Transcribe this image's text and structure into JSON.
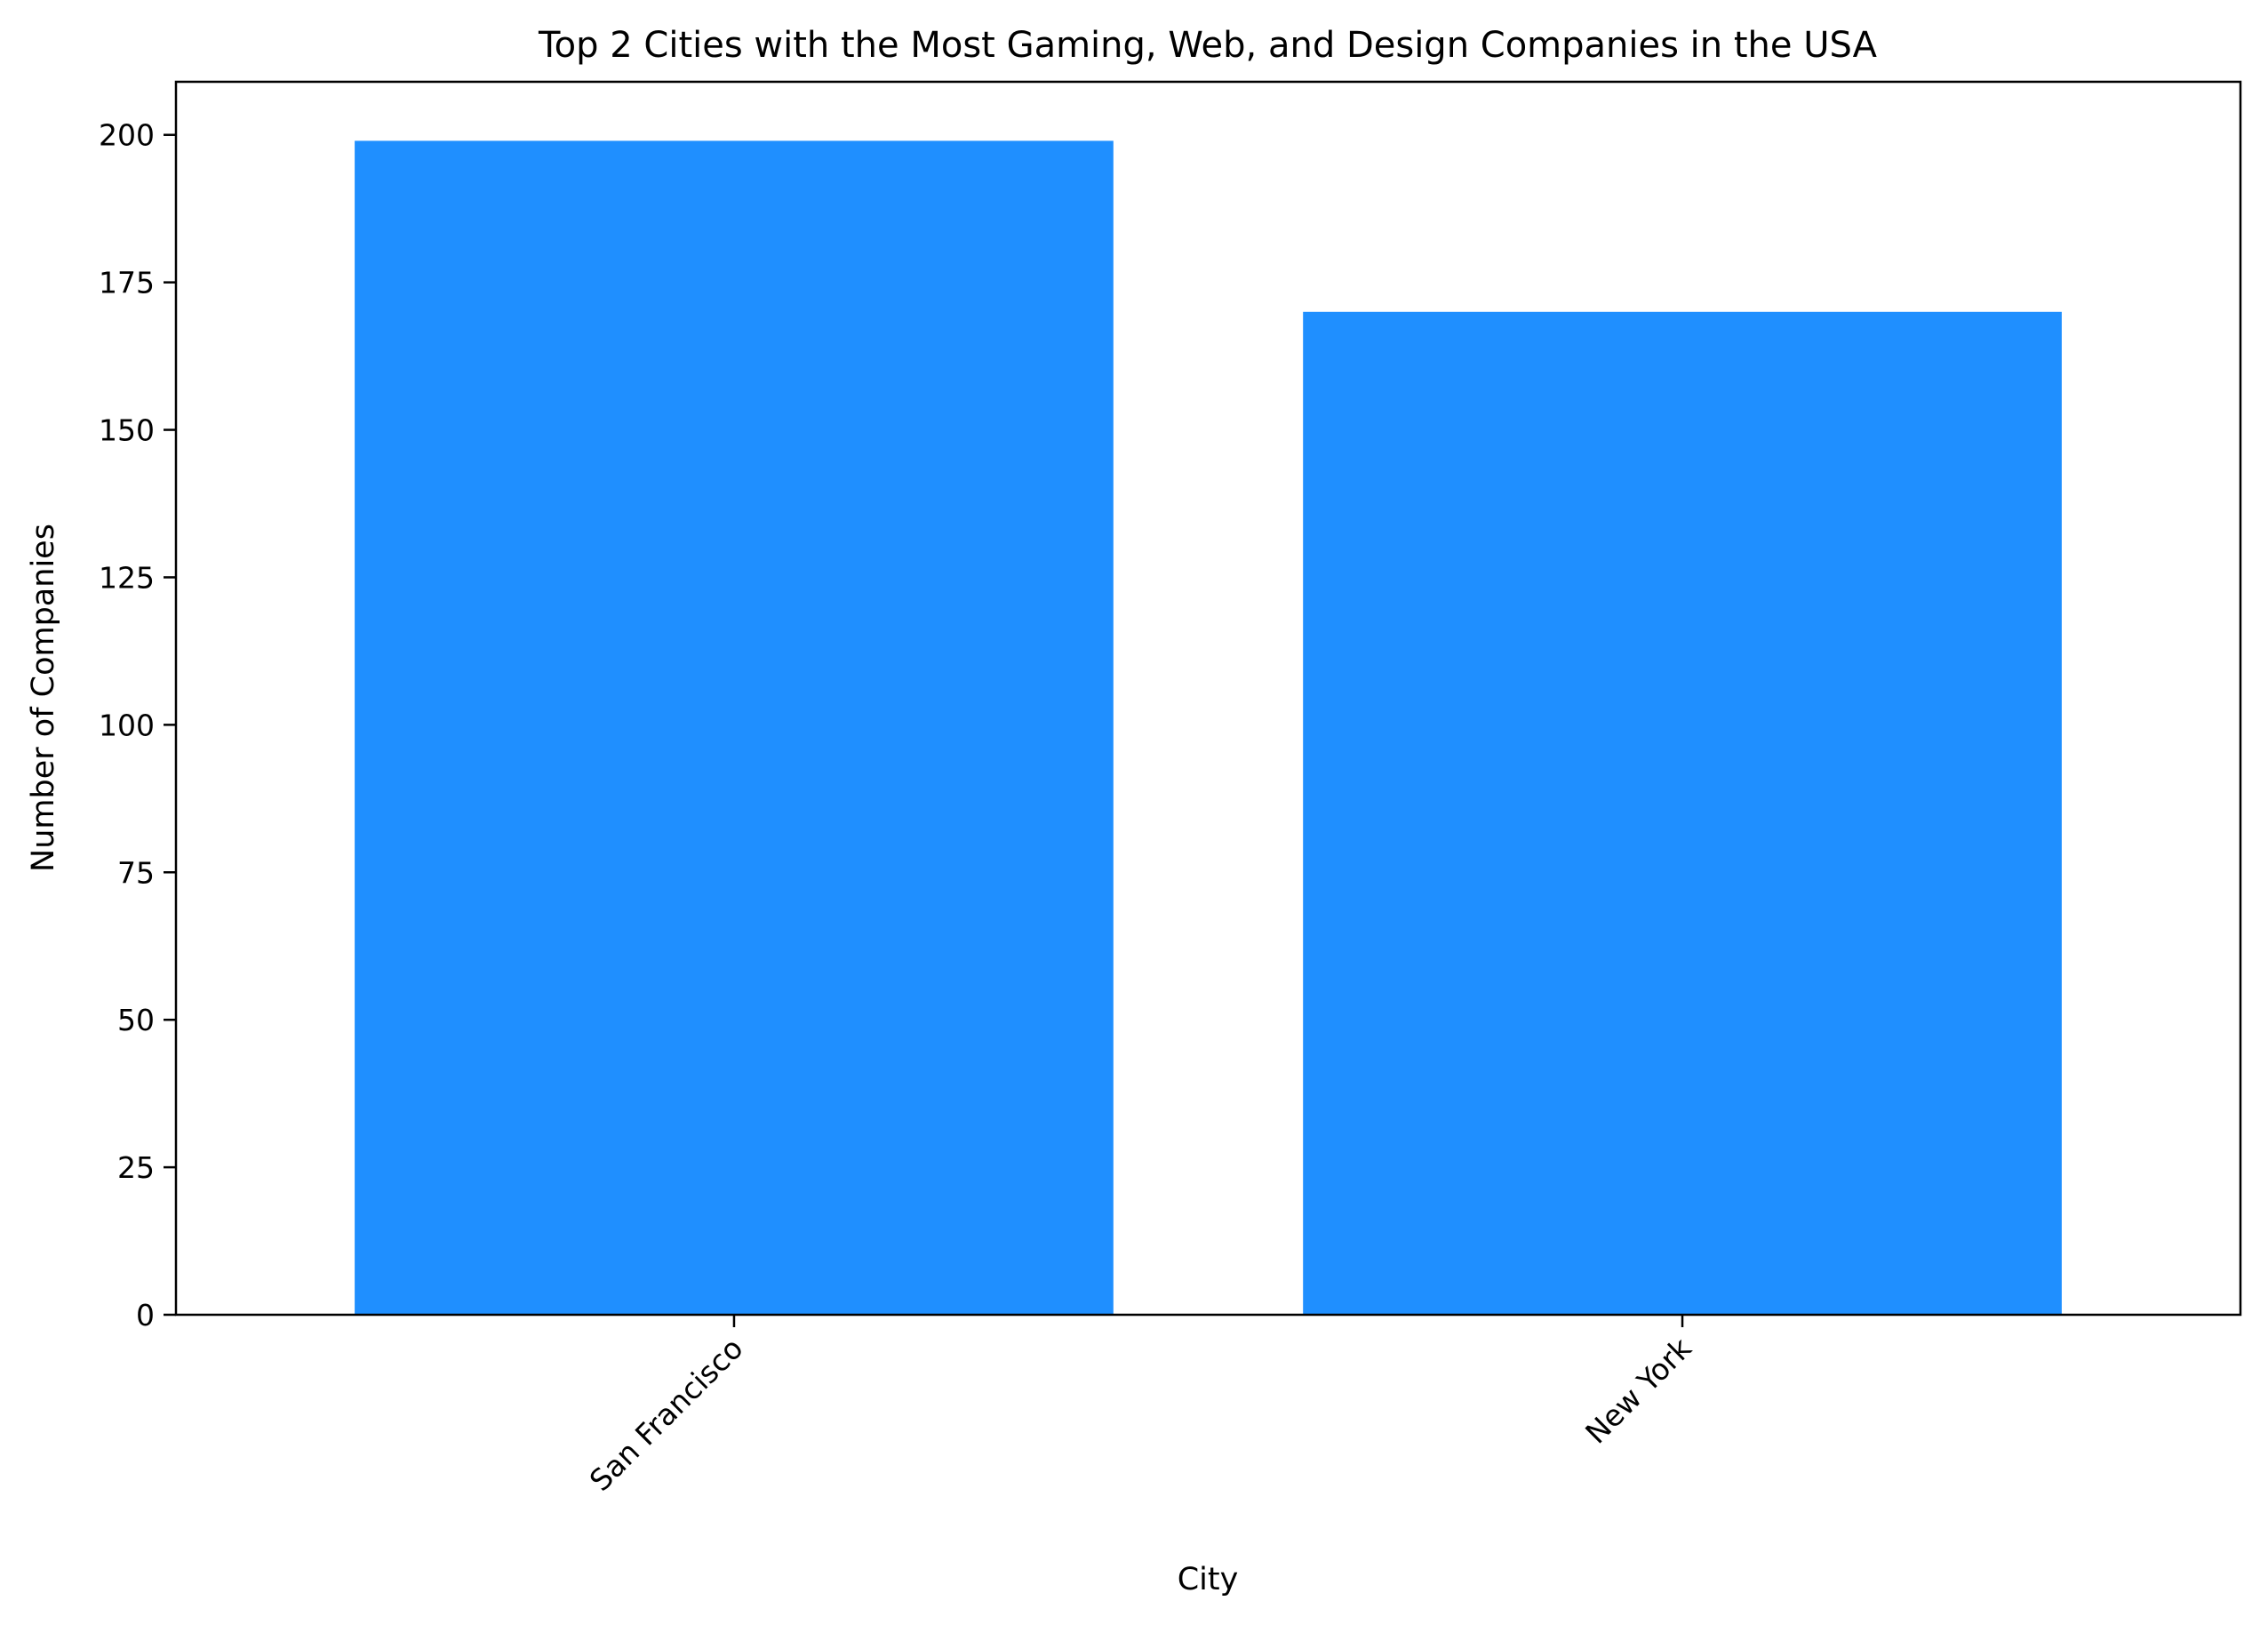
{
  "chart_data": {
    "type": "bar",
    "title": "Top 2 Cities with the Most Gaming, Web, and Design Companies in the USA",
    "xlabel": "City",
    "ylabel": "Number of Companies",
    "categories": [
      "San Francisco",
      "New York"
    ],
    "values": [
      199,
      170
    ],
    "ylim": [
      0,
      209
    ],
    "yticks": [
      0,
      25,
      50,
      75,
      100,
      125,
      150,
      175,
      200
    ],
    "bar_color": "#1f8fff",
    "grid": false,
    "legend": "none"
  }
}
